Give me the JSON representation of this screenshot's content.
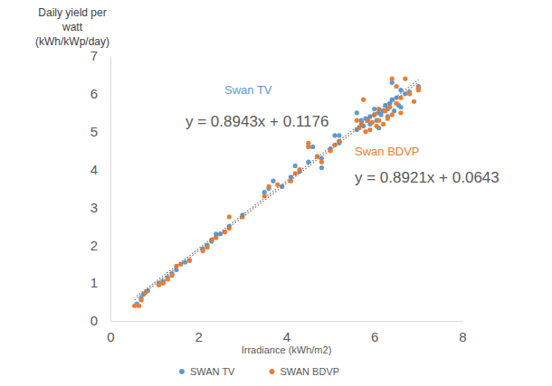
{
  "chart_data": {
    "type": "scatter",
    "x_label": "Irradiance (kWh/m2)",
    "y_label": "Daily yield per watt (kWh/kWp/day)",
    "xlim": [
      0,
      8
    ],
    "xticks": [
      0,
      2,
      4,
      6,
      8
    ],
    "ylim": [
      0,
      7
    ],
    "yticks": [
      0,
      1,
      2,
      3,
      4,
      5,
      6,
      7
    ],
    "grid": false,
    "legend": "bottom",
    "series": [
      {
        "name": "SWAN TV",
        "color": "#5b9bd5",
        "marker": "circle",
        "annotation": "Swan TV",
        "trendline": {
          "slope": 0.8943,
          "intercept": 0.1176,
          "label": "y = 0.8943x + 0.1176"
        },
        "x": [
          0.6,
          0.7,
          0.75,
          0.85,
          1.1,
          1.2,
          1.3,
          1.4,
          1.5,
          1.7,
          1.8,
          2.1,
          2.2,
          2.3,
          2.4,
          2.5,
          2.7,
          3.0,
          3.5,
          3.6,
          3.7,
          3.9,
          4.1,
          4.2,
          4.3,
          4.5,
          4.6,
          4.8,
          4.8,
          5.0,
          5.1,
          5.2,
          5.2,
          5.6,
          5.6,
          5.7,
          5.75,
          5.8,
          5.9,
          5.9,
          6.0,
          6.0,
          6.05,
          6.1,
          6.1,
          6.15,
          6.2,
          6.25,
          6.3,
          6.3,
          6.35,
          6.4,
          6.4,
          6.45,
          6.5,
          6.55,
          6.6,
          6.6,
          6.7,
          6.8,
          7.0,
          7.0
        ],
        "values": [
          0.45,
          0.6,
          0.7,
          0.8,
          1.0,
          1.05,
          1.15,
          1.25,
          1.35,
          1.55,
          1.6,
          1.9,
          2.0,
          2.1,
          2.3,
          2.3,
          2.5,
          2.8,
          3.4,
          3.5,
          3.7,
          3.55,
          3.8,
          4.1,
          3.95,
          4.2,
          4.6,
          4.3,
          4.05,
          4.55,
          4.9,
          4.9,
          4.7,
          5.5,
          5.05,
          5.3,
          5.15,
          5.35,
          5.4,
          5.2,
          5.45,
          5.6,
          5.3,
          5.5,
          5.1,
          5.45,
          5.55,
          5.7,
          5.6,
          5.4,
          5.75,
          6.3,
          5.85,
          5.55,
          5.9,
          5.7,
          6.1,
          5.65,
          6.0,
          6.05,
          6.15,
          6.2
        ]
      },
      {
        "name": "SWAN BDVP",
        "color": "#ed7d31",
        "marker": "circle",
        "annotation": "Swan BDVP",
        "trendline": {
          "slope": 0.8921,
          "intercept": 0.0643,
          "label": "y = 0.8921x + 0.0643"
        },
        "x": [
          0.55,
          0.65,
          0.7,
          0.8,
          1.1,
          1.2,
          1.3,
          1.4,
          1.5,
          1.6,
          1.8,
          2.1,
          2.2,
          2.3,
          2.4,
          2.6,
          2.7,
          2.7,
          3.0,
          3.5,
          3.6,
          3.8,
          4.1,
          4.2,
          4.3,
          4.5,
          4.5,
          4.7,
          4.8,
          5.0,
          5.1,
          5.2,
          5.6,
          5.65,
          5.7,
          5.75,
          5.8,
          5.85,
          5.9,
          5.95,
          6.0,
          6.05,
          6.1,
          6.1,
          6.2,
          6.25,
          6.3,
          6.35,
          6.4,
          6.4,
          6.5,
          6.5,
          6.6,
          6.6,
          6.7,
          6.8,
          6.9,
          7.0,
          7.0
        ],
        "values": [
          0.4,
          0.4,
          0.55,
          0.75,
          0.95,
          1.0,
          1.1,
          1.2,
          1.45,
          1.5,
          1.6,
          1.85,
          1.95,
          2.15,
          2.2,
          2.35,
          2.75,
          2.45,
          2.75,
          3.3,
          3.55,
          3.6,
          3.7,
          3.9,
          4.0,
          4.6,
          4.7,
          4.35,
          4.2,
          4.5,
          4.65,
          4.75,
          5.3,
          5.1,
          5.2,
          5.85,
          5.0,
          5.3,
          5.05,
          5.25,
          5.45,
          5.15,
          5.3,
          5.6,
          5.2,
          5.55,
          5.35,
          5.65,
          6.4,
          5.45,
          5.75,
          6.2,
          5.5,
          5.9,
          6.4,
          6.0,
          5.8,
          6.1,
          6.15
        ]
      }
    ]
  }
}
